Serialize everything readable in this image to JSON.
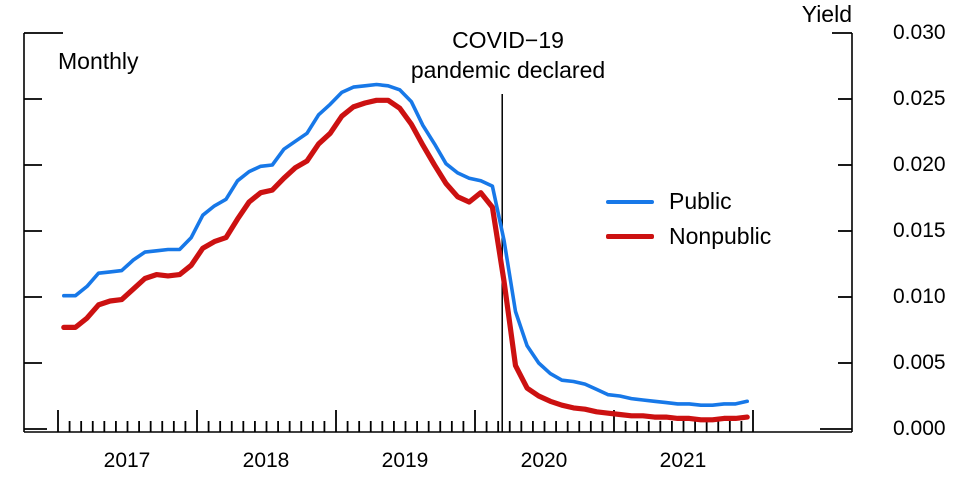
{
  "chart_data": {
    "type": "line",
    "frequency_label": "Monthly",
    "ylabel": "Yield",
    "ylim": [
      0.0,
      0.03
    ],
    "grid": false,
    "legend_position": "center-right",
    "y_ticks": [
      0.03,
      0.025,
      0.02,
      0.015,
      0.01,
      0.005,
      0.0
    ],
    "y_tick_labels": [
      "0.030",
      "0.025",
      "0.020",
      "0.015",
      "0.010",
      "0.005",
      "0.000"
    ],
    "x_year_labels": [
      "2017",
      "2018",
      "2019",
      "2020",
      "2021"
    ],
    "annotation": {
      "line1": "COVID−19",
      "line2": "pandemic declared",
      "month": "2020-03"
    },
    "x": [
      "2017-01",
      "2017-02",
      "2017-03",
      "2017-04",
      "2017-05",
      "2017-06",
      "2017-07",
      "2017-08",
      "2017-09",
      "2017-10",
      "2017-11",
      "2017-12",
      "2018-01",
      "2018-02",
      "2018-03",
      "2018-04",
      "2018-05",
      "2018-06",
      "2018-07",
      "2018-08",
      "2018-09",
      "2018-10",
      "2018-11",
      "2018-12",
      "2019-01",
      "2019-02",
      "2019-03",
      "2019-04",
      "2019-05",
      "2019-06",
      "2019-07",
      "2019-08",
      "2019-09",
      "2019-10",
      "2019-11",
      "2019-12",
      "2020-01",
      "2020-02",
      "2020-03",
      "2020-04",
      "2020-05",
      "2020-06",
      "2020-07",
      "2020-08",
      "2020-09",
      "2020-10",
      "2020-11",
      "2020-12",
      "2021-01",
      "2021-02",
      "2021-03",
      "2021-04",
      "2021-05",
      "2021-06",
      "2021-07",
      "2021-08",
      "2021-09",
      "2021-10",
      "2021-11",
      "2021-12"
    ],
    "series": [
      {
        "name": "Public",
        "color": "#1778E8",
        "values": [
          0.0101,
          0.0101,
          0.0108,
          0.0118,
          0.0119,
          0.012,
          0.0128,
          0.0134,
          0.0135,
          0.0136,
          0.0136,
          0.0145,
          0.0162,
          0.0169,
          0.0174,
          0.0188,
          0.0195,
          0.0199,
          0.02,
          0.0212,
          0.0218,
          0.0224,
          0.0238,
          0.0246,
          0.0255,
          0.0259,
          0.026,
          0.0261,
          0.026,
          0.0257,
          0.0248,
          0.023,
          0.0216,
          0.0201,
          0.0194,
          0.019,
          0.0188,
          0.0184,
          0.0143,
          0.0089,
          0.0063,
          0.005,
          0.0042,
          0.0037,
          0.0036,
          0.0034,
          0.003,
          0.0026,
          0.0025,
          0.0023,
          0.0022,
          0.0021,
          0.002,
          0.0019,
          0.0019,
          0.0018,
          0.0018,
          0.0019,
          0.0019,
          0.0021
        ]
      },
      {
        "name": "Nonpublic",
        "color": "#CC1111",
        "values": [
          0.0077,
          0.0077,
          0.0084,
          0.0094,
          0.0097,
          0.0098,
          0.0106,
          0.0114,
          0.0117,
          0.0116,
          0.0117,
          0.0124,
          0.0137,
          0.0142,
          0.0145,
          0.0159,
          0.0172,
          0.0179,
          0.0181,
          0.019,
          0.0198,
          0.0203,
          0.0216,
          0.0224,
          0.0237,
          0.0244,
          0.0247,
          0.0249,
          0.0249,
          0.0243,
          0.0231,
          0.0215,
          0.02,
          0.0186,
          0.0176,
          0.0172,
          0.0179,
          0.0168,
          0.0112,
          0.0048,
          0.0031,
          0.0025,
          0.0021,
          0.0018,
          0.0016,
          0.0015,
          0.0013,
          0.0012,
          0.0011,
          0.001,
          0.001,
          0.0009,
          0.0009,
          0.0008,
          0.0008,
          0.0007,
          0.0007,
          0.0008,
          0.0008,
          0.0009
        ]
      }
    ]
  }
}
